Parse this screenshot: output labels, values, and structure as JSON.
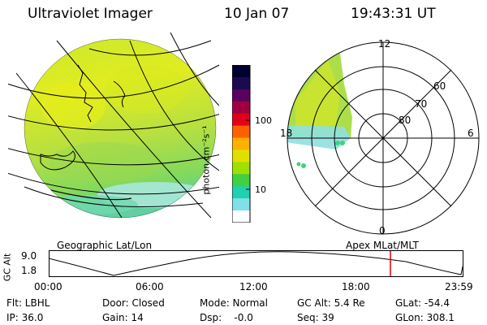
{
  "header": {
    "instrument": "Ultraviolet Imager",
    "date": "10 Jan 07",
    "time": "19:43:31 UT"
  },
  "colorbar": {
    "ticks": [
      "100",
      "10"
    ],
    "unit_label": "photon cm⁻²s⁻¹",
    "colors": [
      "#000030",
      "#1a0a50",
      "#5a0060",
      "#a00040",
      "#e0001a",
      "#ff6000",
      "#ffb000",
      "#e0e000",
      "#a0e000",
      "#40d040",
      "#20d0b0",
      "#80e0e8",
      "#ffffff"
    ]
  },
  "projections": {
    "left": "Geographic Lat/Lon",
    "right": "Apex MLat/MLT"
  },
  "polar": {
    "mlt_labels": {
      "top": "12",
      "left": "18",
      "right": "6",
      "bottom": "0"
    },
    "lat_labels": [
      "60",
      "70",
      "80"
    ]
  },
  "altitude_plot": {
    "axis_label": "GC Alt",
    "y_ticks": [
      "9.0",
      "1.8"
    ],
    "x_ticks": [
      "00:00",
      "06:00",
      "12:00",
      "18:00",
      "23:59"
    ],
    "current_time_color": "#e00000"
  },
  "status": {
    "filter": "Flt: LBHL",
    "door": "Door: Closed",
    "mode": "Mode: Normal",
    "gc_alt": "GC Alt: 5.4 Re",
    "glat": "GLat: -54.4",
    "ip": "IP: 36.0",
    "gain": "Gain: 14",
    "dsp": "Dsp:    -0.0",
    "seq": "Seq: 39",
    "glon": "GLon: 308.1"
  }
}
